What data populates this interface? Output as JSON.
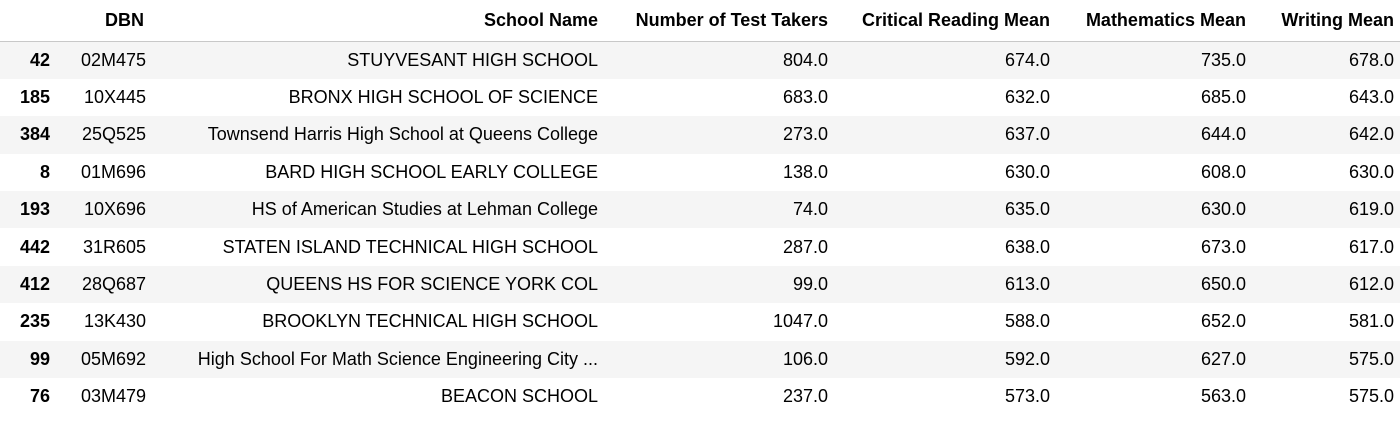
{
  "table": {
    "columns": [
      "",
      "DBN",
      "School Name",
      "Number of Test Takers",
      "Critical Reading Mean",
      "Mathematics Mean",
      "Writing Mean"
    ],
    "rows": [
      {
        "index": "42",
        "dbn": "02M475",
        "name": "STUYVESANT HIGH SCHOOL",
        "takers": "804.0",
        "reading": "674.0",
        "math": "735.0",
        "writing": "678.0"
      },
      {
        "index": "185",
        "dbn": "10X445",
        "name": "BRONX HIGH SCHOOL OF SCIENCE",
        "takers": "683.0",
        "reading": "632.0",
        "math": "685.0",
        "writing": "643.0"
      },
      {
        "index": "384",
        "dbn": "25Q525",
        "name": "Townsend Harris High School at Queens College",
        "takers": "273.0",
        "reading": "637.0",
        "math": "644.0",
        "writing": "642.0"
      },
      {
        "index": "8",
        "dbn": "01M696",
        "name": "BARD HIGH SCHOOL EARLY COLLEGE",
        "takers": "138.0",
        "reading": "630.0",
        "math": "608.0",
        "writing": "630.0"
      },
      {
        "index": "193",
        "dbn": "10X696",
        "name": "HS of American Studies at Lehman College",
        "takers": "74.0",
        "reading": "635.0",
        "math": "630.0",
        "writing": "619.0"
      },
      {
        "index": "442",
        "dbn": "31R605",
        "name": "STATEN ISLAND TECHNICAL HIGH SCHOOL",
        "takers": "287.0",
        "reading": "638.0",
        "math": "673.0",
        "writing": "617.0"
      },
      {
        "index": "412",
        "dbn": "28Q687",
        "name": "QUEENS HS FOR SCIENCE YORK COL",
        "takers": "99.0",
        "reading": "613.0",
        "math": "650.0",
        "writing": "612.0"
      },
      {
        "index": "235",
        "dbn": "13K430",
        "name": "BROOKLYN TECHNICAL HIGH SCHOOL",
        "takers": "1047.0",
        "reading": "588.0",
        "math": "652.0",
        "writing": "581.0"
      },
      {
        "index": "99",
        "dbn": "05M692",
        "name": "High School For Math Science Engineering City ...",
        "takers": "106.0",
        "reading": "592.0",
        "math": "627.0",
        "writing": "575.0"
      },
      {
        "index": "76",
        "dbn": "03M479",
        "name": "BEACON SCHOOL",
        "takers": "237.0",
        "reading": "573.0",
        "math": "563.0",
        "writing": "575.0"
      }
    ]
  }
}
